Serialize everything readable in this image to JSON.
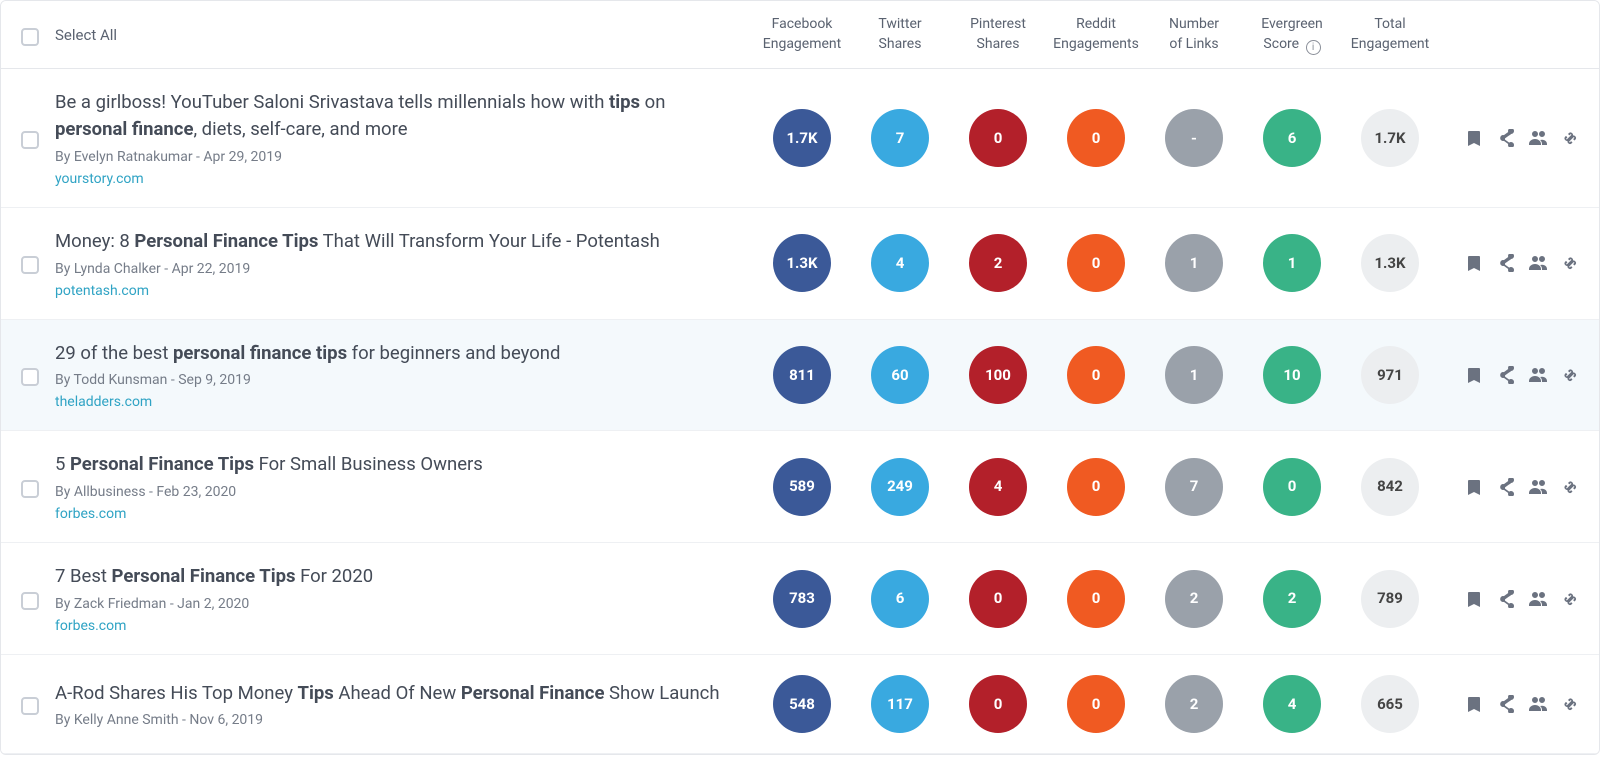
{
  "colors": {
    "facebook": "#3b5998",
    "twitter": "#39a9e0",
    "pinterest": "#b3202a",
    "reddit": "#f05a22",
    "links": "#9aa1aa",
    "evergreen": "#39b387",
    "total": "#eceef0",
    "row_highlight_bg": "#f4f9fc",
    "link_color": "#2fa3c4",
    "text_muted": "#757c88",
    "border": "#e5e7eb"
  },
  "header": {
    "select_all": "Select All",
    "columns": [
      {
        "key": "facebook",
        "line1": "Facebook",
        "line2": "Engagement"
      },
      {
        "key": "twitter",
        "line1": "Twitter",
        "line2": "Shares"
      },
      {
        "key": "pinterest",
        "line1": "Pinterest",
        "line2": "Shares"
      },
      {
        "key": "reddit",
        "line1": "Reddit",
        "line2": "Engagements"
      },
      {
        "key": "links",
        "line1": "Number",
        "line2": "of Links"
      },
      {
        "key": "evergreen",
        "line1": "Evergreen",
        "line2": "Score",
        "info": true
      },
      {
        "key": "total",
        "line1": "Total",
        "line2": "Engagement"
      }
    ]
  },
  "action_labels": {
    "save": "save",
    "share": "share",
    "sharers": "view-sharers",
    "backlinks": "view-backlinks"
  },
  "rows": [
    {
      "title_html": "Be a girlboss! YouTuber Saloni Srivastava tells millennials how with <b>tips</b> on <b>personal finance</b>, diets, self-care, and more",
      "byline": "By Evelyn Ratnakumar - Apr 29, 2019",
      "domain": "yourstory.com",
      "highlight": false,
      "metrics": {
        "facebook": "1.7K",
        "twitter": "7",
        "pinterest": "0",
        "reddit": "0",
        "links": "-",
        "evergreen": "6",
        "total": "1.7K"
      }
    },
    {
      "title_html": "Money: 8 <b>Personal Finance Tips</b> That Will Transform Your Life - Potentash",
      "byline": "By Lynda Chalker - Apr 22, 2019",
      "domain": "potentash.com",
      "highlight": false,
      "metrics": {
        "facebook": "1.3K",
        "twitter": "4",
        "pinterest": "2",
        "reddit": "0",
        "links": "1",
        "evergreen": "1",
        "total": "1.3K"
      }
    },
    {
      "title_html": "29 of the best <b>personal finance tips</b> for beginners and beyond",
      "byline": "By Todd Kunsman - Sep 9, 2019",
      "domain": "theladders.com",
      "highlight": true,
      "metrics": {
        "facebook": "811",
        "twitter": "60",
        "pinterest": "100",
        "reddit": "0",
        "links": "1",
        "evergreen": "10",
        "total": "971"
      }
    },
    {
      "title_html": "5 <b>Personal Finance Tips</b> For Small Business Owners",
      "byline": "By Allbusiness - Feb 23, 2020",
      "domain": "forbes.com",
      "highlight": false,
      "metrics": {
        "facebook": "589",
        "twitter": "249",
        "pinterest": "4",
        "reddit": "0",
        "links": "7",
        "evergreen": "0",
        "total": "842"
      }
    },
    {
      "title_html": "7 Best <b>Personal Finance Tips</b> For 2020",
      "byline": "By Zack Friedman - Jan 2, 2020",
      "domain": "forbes.com",
      "highlight": false,
      "metrics": {
        "facebook": "783",
        "twitter": "6",
        "pinterest": "0",
        "reddit": "0",
        "links": "2",
        "evergreen": "2",
        "total": "789"
      }
    },
    {
      "title_html": "A-Rod Shares His Top Money <b>Tips</b> Ahead Of New <b>Personal Finance</b> Show Launch",
      "byline": "By Kelly Anne Smith - Nov 6, 2019",
      "domain": "",
      "highlight": false,
      "metrics": {
        "facebook": "548",
        "twitter": "117",
        "pinterest": "0",
        "reddit": "0",
        "links": "2",
        "evergreen": "4",
        "total": "665"
      }
    }
  ]
}
